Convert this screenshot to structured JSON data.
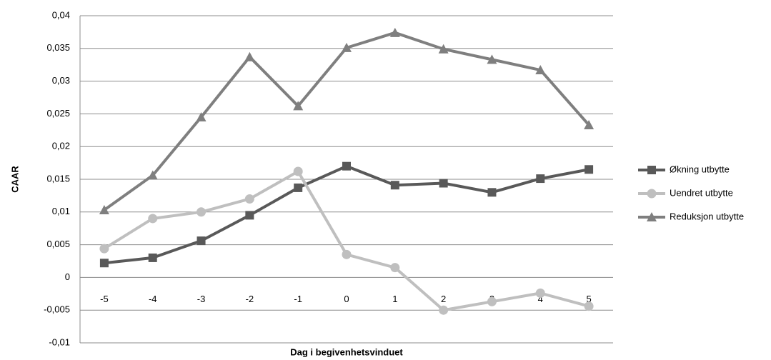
{
  "chart_data": {
    "type": "line",
    "y_label": "CAAR",
    "x_label": "Dag i begivenhetsvinduet",
    "categories": [
      "-5",
      "-4",
      "-3",
      "-2",
      "-1",
      "0",
      "1",
      "2",
      "3",
      "4",
      "5"
    ],
    "series": [
      {
        "name": "Økning utbytte",
        "color": "#595959",
        "marker": "square",
        "values": [
          0.0022,
          0.003,
          0.0056,
          0.0095,
          0.0137,
          0.017,
          0.0141,
          0.0144,
          0.013,
          0.0151,
          0.0165
        ]
      },
      {
        "name": "Uendret utbytte",
        "color": "#bfbfbf",
        "marker": "circle",
        "values": [
          0.0044,
          0.009,
          0.01,
          0.012,
          0.0162,
          0.0035,
          0.0015,
          -0.005,
          -0.0037,
          -0.0024,
          -0.0044
        ]
      },
      {
        "name": "Reduksjon utbytte",
        "color": "#7f7f7f",
        "marker": "triangle",
        "values": [
          0.0103,
          0.0156,
          0.0245,
          0.0337,
          0.0262,
          0.0351,
          0.0374,
          0.0349,
          0.0333,
          0.0317,
          0.0233
        ]
      }
    ],
    "ylim": [
      -0.01,
      0.04
    ],
    "yticks": [
      {
        "value": -0.01,
        "label": "-0,01"
      },
      {
        "value": -0.005,
        "label": "-0,005"
      },
      0,
      {
        "value": 0.005,
        "label": "0,005"
      },
      {
        "value": 0.01,
        "label": "0,01"
      },
      {
        "value": 0.015,
        "label": "0,015"
      },
      {
        "value": 0.02,
        "label": "0,02"
      },
      {
        "value": 0.025,
        "label": "0,025"
      },
      {
        "value": 0.03,
        "label": "0,03"
      },
      {
        "value": 0.035,
        "label": "0,035"
      },
      {
        "value": 0.04,
        "label": "0,04"
      }
    ],
    "grid": true,
    "legend": "right"
  }
}
